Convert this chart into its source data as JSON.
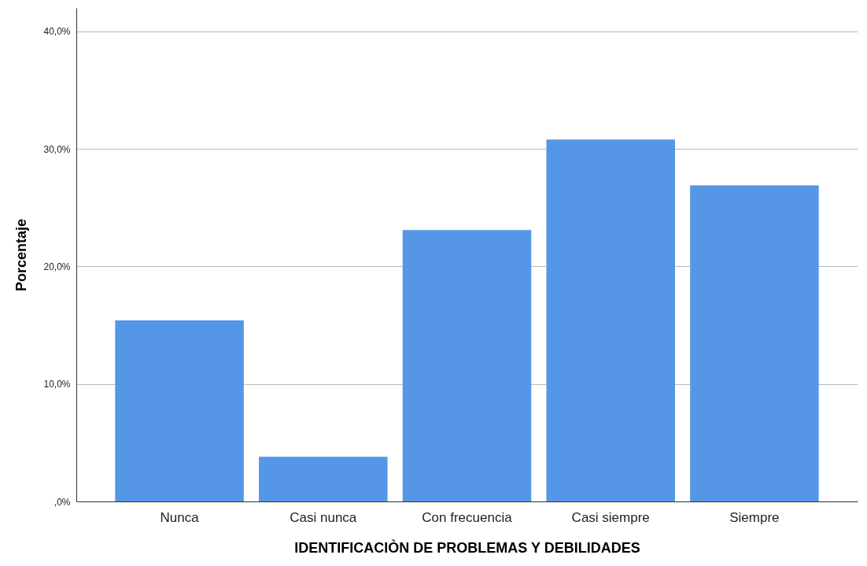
{
  "chart_data": {
    "type": "bar",
    "xlabel": "IDENTIFICACIÒN DE PROBLEMAS Y DEBILIDADES",
    "ylabel": "Porcentaje",
    "categories": [
      "Nunca",
      "Casi nunca",
      "Con frecuencia",
      "Casi siempre",
      "Siempre"
    ],
    "values": [
      15.4,
      3.8,
      23.1,
      30.8,
      26.9
    ],
    "color": "#5596e6",
    "ylim": [
      0,
      42
    ],
    "yticks": [
      {
        "value": 0,
        "label": ",0%"
      },
      {
        "value": 10,
        "label": "10,0%"
      },
      {
        "value": 20,
        "label": "20,0%"
      },
      {
        "value": 30,
        "label": "30,0%"
      },
      {
        "value": 40,
        "label": "40,0%"
      }
    ],
    "grid": "y"
  }
}
